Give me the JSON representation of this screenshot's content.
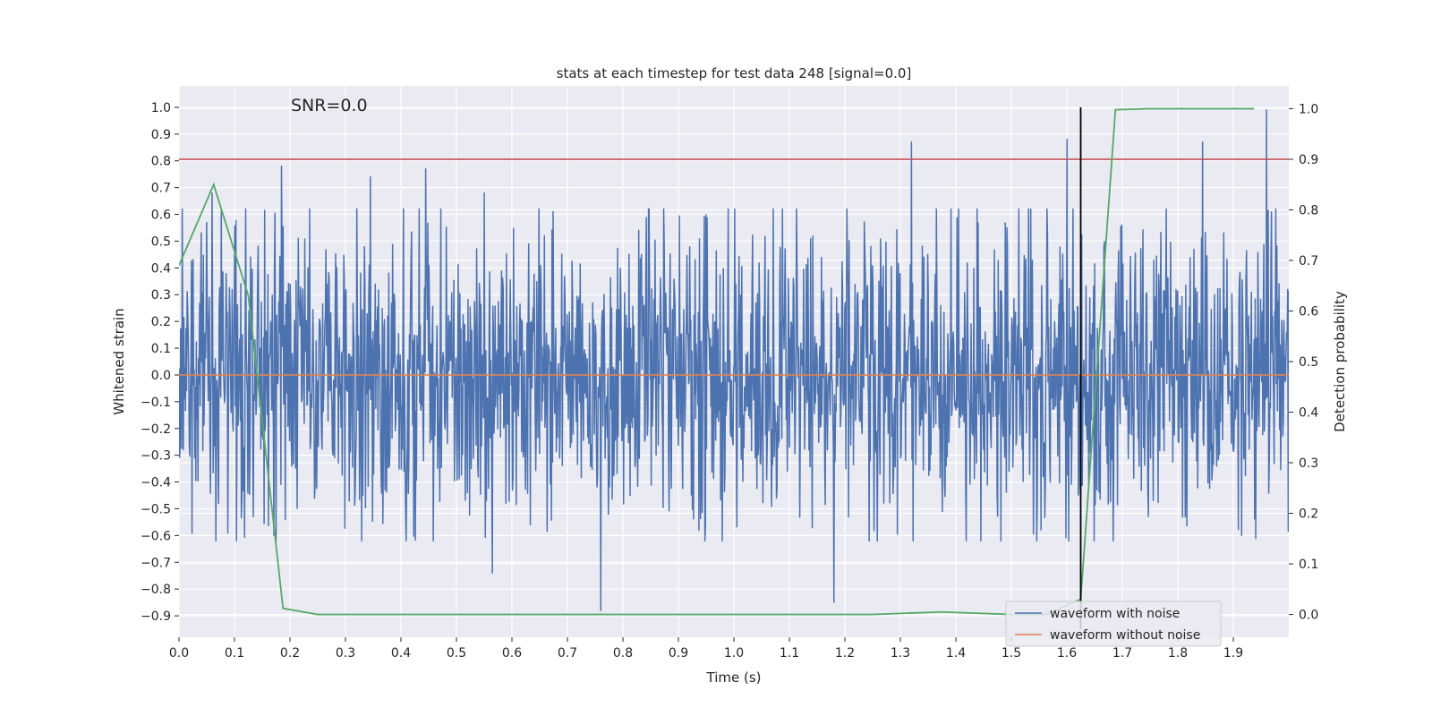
{
  "chart_data": {
    "type": "line",
    "title": "stats at each timestep for test data 248 [signal=0.0]",
    "annotation": "SNR=0.0",
    "xlabel": "Time (s)",
    "ylabel": "Whitened strain",
    "y2label": "Detection probability",
    "xlim": [
      0.0,
      2.0
    ],
    "ylim": [
      -0.98,
      1.08
    ],
    "y2lim": [
      -0.045,
      1.045
    ],
    "grid": true,
    "legend_position": "lower-right",
    "x_ticks": [
      "0.0",
      "0.1",
      "0.2",
      "0.3",
      "0.4",
      "0.5",
      "0.6",
      "0.7",
      "0.8",
      "0.9",
      "1.0",
      "1.1",
      "1.2",
      "1.3",
      "1.4",
      "1.5",
      "1.6",
      "1.7",
      "1.8",
      "1.9"
    ],
    "y_ticks": [
      "1.0",
      "0.9",
      "0.8",
      "0.7",
      "0.6",
      "0.5",
      "0.4",
      "0.3",
      "0.2",
      "0.1",
      "0.0",
      "−0.1",
      "−0.2",
      "−0.3",
      "−0.4",
      "−0.5",
      "−0.6",
      "−0.7",
      "−0.8",
      "−0.9"
    ],
    "y2_ticks": [
      "1.0",
      "0.9",
      "0.8",
      "0.7",
      "0.6",
      "0.5",
      "0.4",
      "0.3",
      "0.2",
      "0.1",
      "0.0"
    ],
    "series": [
      {
        "name": "waveform with noise",
        "axis": "left",
        "color": "#4c72b0",
        "peaks": [
          {
            "x": 0.06,
            "y": 0.68
          },
          {
            "x": 0.185,
            "y": 0.78
          },
          {
            "x": 0.345,
            "y": 0.74
          },
          {
            "x": 0.445,
            "y": 0.77
          },
          {
            "x": 0.55,
            "y": 0.68
          },
          {
            "x": 0.76,
            "y": -0.88
          },
          {
            "x": 1.18,
            "y": -0.85
          },
          {
            "x": 1.32,
            "y": 0.87
          },
          {
            "x": 1.6,
            "y": 0.88
          },
          {
            "x": 1.845,
            "y": 0.87
          },
          {
            "x": 1.96,
            "y": 0.99
          },
          {
            "x": 0.565,
            "y": -0.74
          }
        ],
        "noise_std": 0.28,
        "samples": 2048
      },
      {
        "name": "waveform without noise",
        "axis": "left",
        "color": "#dd8452",
        "x": [
          0.0,
          2.0
        ],
        "y": [
          0.0,
          0.0
        ]
      },
      {
        "name": "Detection probability",
        "axis": "right",
        "color": "#55a868",
        "x": [
          0.0,
          0.0625,
          0.125,
          0.1875,
          0.25,
          0.3125,
          1.25,
          1.375,
          1.5,
          1.5625,
          1.625,
          1.6875,
          1.75,
          1.9375
        ],
        "y": [
          0.69,
          0.85,
          0.63,
          0.012,
          0.0,
          0.0,
          0.0,
          0.005,
          0.0,
          0.0,
          0.03,
          0.998,
          1.0,
          1.0
        ]
      }
    ],
    "threshold_line": {
      "axis": "right",
      "y": 0.9,
      "color": "#c44e52"
    },
    "vertical_line": {
      "x": 1.625,
      "y_from": -0.95,
      "y_to": 1.0,
      "color": "#000000"
    }
  }
}
